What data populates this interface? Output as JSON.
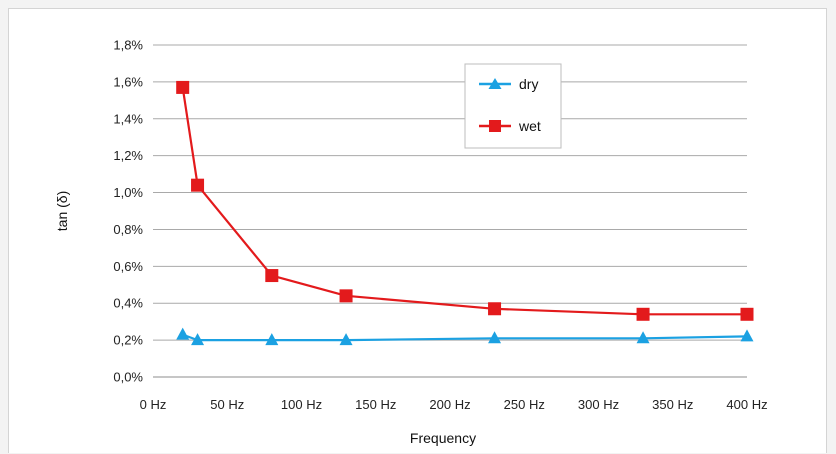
{
  "chart_data": {
    "type": "line",
    "xlabel": "Frequency",
    "ylabel": "tan (δ)",
    "x_unit": "Hz",
    "xlim": [
      0,
      400
    ],
    "ylim": [
      0.0,
      1.8
    ],
    "x_ticks": [
      0,
      50,
      100,
      150,
      200,
      250,
      300,
      350,
      400
    ],
    "x_tick_labels": [
      "0 Hz",
      "50 Hz",
      "100 Hz",
      "150 Hz",
      "200 Hz",
      "250 Hz",
      "300 Hz",
      "350 Hz",
      "400 Hz"
    ],
    "y_ticks": [
      0.0,
      0.2,
      0.4,
      0.6,
      0.8,
      1.0,
      1.2,
      1.4,
      1.6,
      1.8
    ],
    "y_tick_labels": [
      "0,0%",
      "0,2%",
      "0,4%",
      "0,6%",
      "0,8%",
      "1,0%",
      "1,2%",
      "1,4%",
      "1,6%",
      "1,8%"
    ],
    "y_unit": "%",
    "grid": "horizontal",
    "legend_position": "top-right",
    "series": [
      {
        "name": "dry",
        "color": "#1ba1e2",
        "marker": "triangle",
        "x": [
          20,
          30,
          80,
          130,
          230,
          330,
          400
        ],
        "y": [
          0.23,
          0.2,
          0.2,
          0.2,
          0.21,
          0.21,
          0.22
        ]
      },
      {
        "name": "wet",
        "color": "#e31a1c",
        "marker": "square",
        "x": [
          20,
          30,
          80,
          130,
          230,
          330,
          400
        ],
        "y": [
          1.57,
          1.04,
          0.55,
          0.44,
          0.37,
          0.34,
          0.34
        ]
      }
    ]
  }
}
